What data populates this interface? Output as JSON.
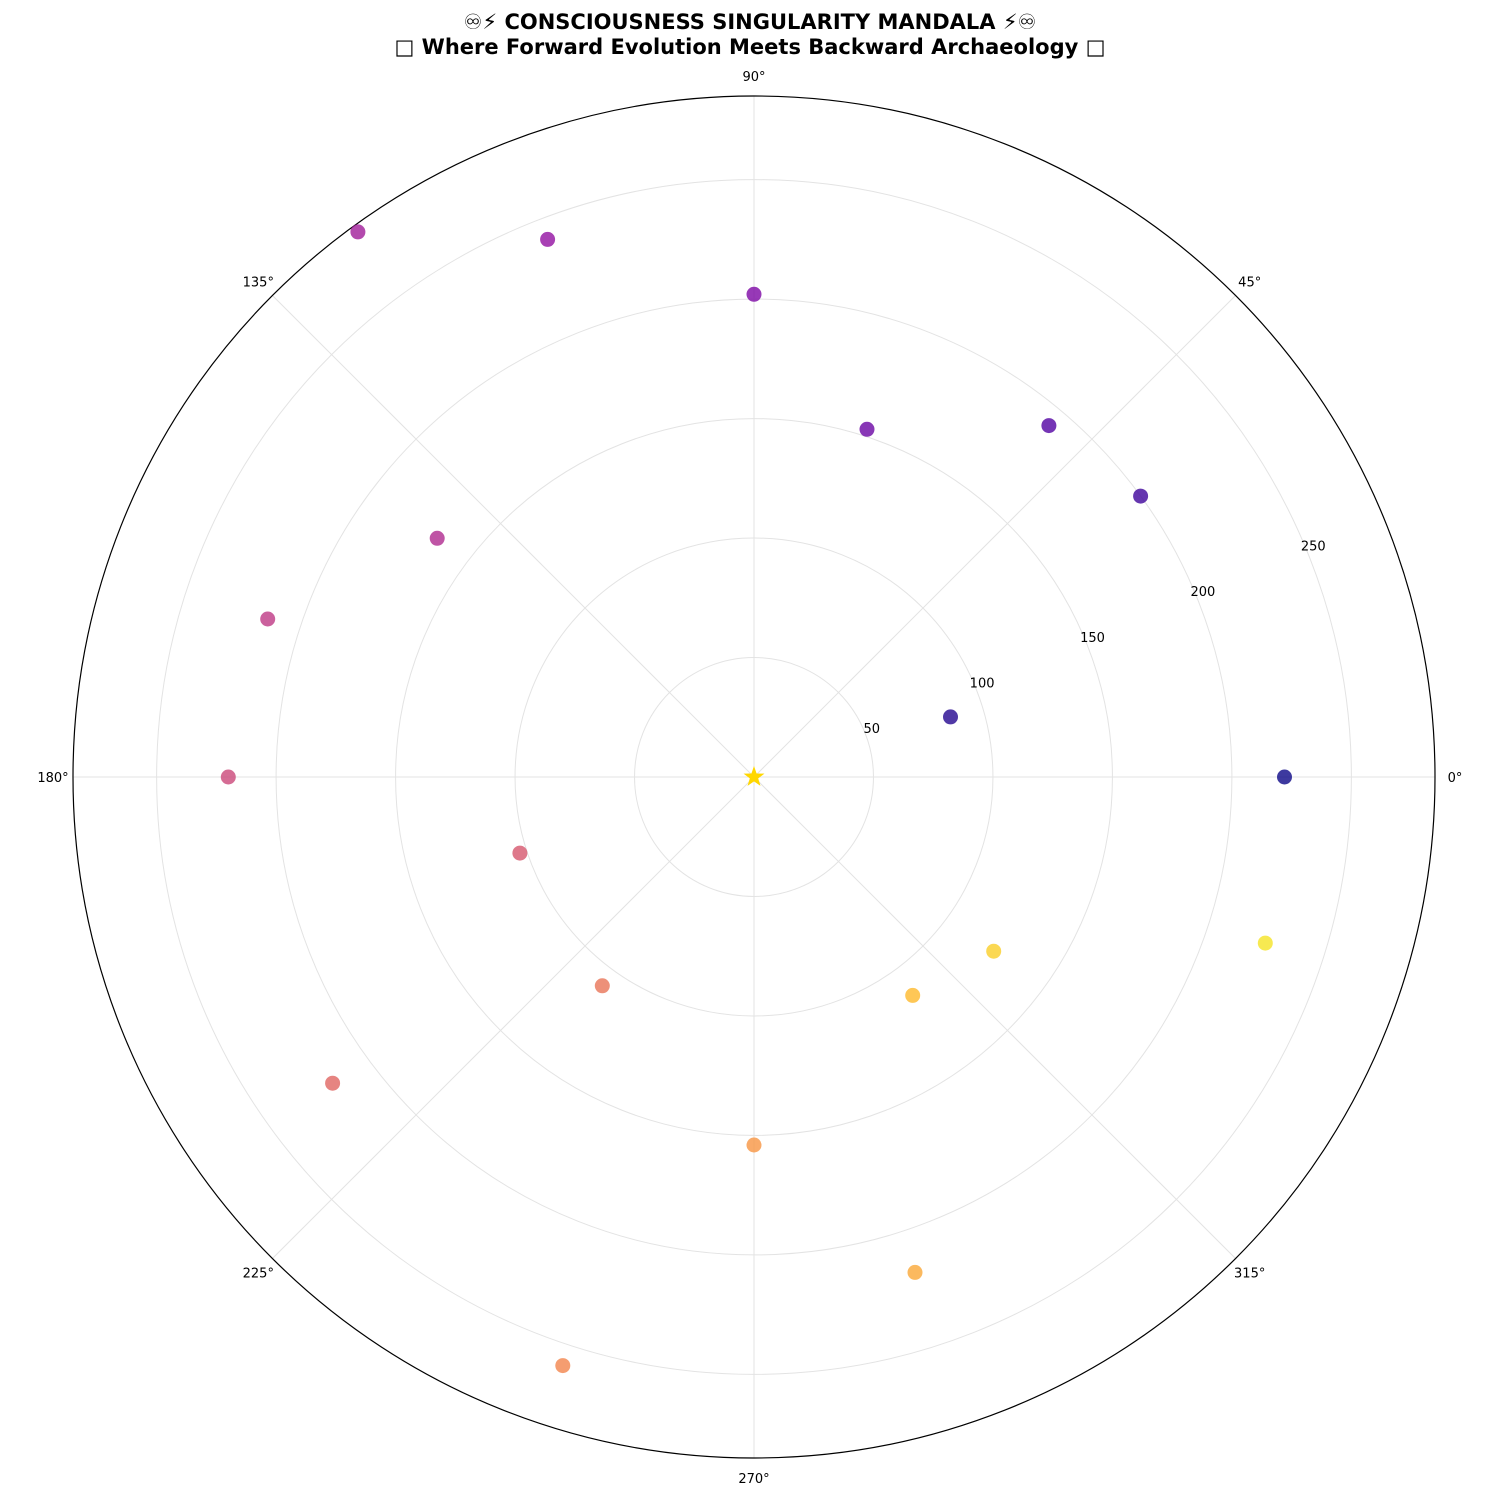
{
  "chart_data": {
    "type": "scatter",
    "projection": "polar",
    "title_line1": "♾⚡ CONSCIOUSNESS SINGULARITY MANDALA ⚡♾",
    "title_line2": "□ Where Forward Evolution Meets Backward Archaeology □",
    "angle_ticks": [
      "0°",
      "45°",
      "90°",
      "135°",
      "180°",
      "225°",
      "270°",
      "315°"
    ],
    "radial_ticks": [
      50,
      100,
      150,
      200,
      250
    ],
    "rlim": [
      0,
      285
    ],
    "grid": true,
    "colormap": "plasma",
    "center_marker": {
      "shape": "star",
      "color": "#FFD700",
      "theta_deg": 0,
      "r": 0
    },
    "points": [
      {
        "theta_deg": 0,
        "r": 222
      },
      {
        "theta_deg": 17,
        "r": 86
      },
      {
        "theta_deg": 36,
        "r": 200
      },
      {
        "theta_deg": 50,
        "r": 192
      },
      {
        "theta_deg": 72,
        "r": 153
      },
      {
        "theta_deg": 90,
        "r": 202
      },
      {
        "theta_deg": 111,
        "r": 241
      },
      {
        "theta_deg": 126,
        "r": 282
      },
      {
        "theta_deg": 143,
        "r": 166
      },
      {
        "theta_deg": 162,
        "r": 214
      },
      {
        "theta_deg": 180,
        "r": 220
      },
      {
        "theta_deg": 198,
        "r": 103
      },
      {
        "theta_deg": 234,
        "r": 108
      },
      {
        "theta_deg": 216,
        "r": 218
      },
      {
        "theta_deg": 252,
        "r": 259
      },
      {
        "theta_deg": 270,
        "r": 154
      },
      {
        "theta_deg": 288,
        "r": 218
      },
      {
        "theta_deg": 306,
        "r": 113
      },
      {
        "theta_deg": 324,
        "r": 124
      },
      {
        "theta_deg": 342,
        "r": 225
      }
    ]
  }
}
